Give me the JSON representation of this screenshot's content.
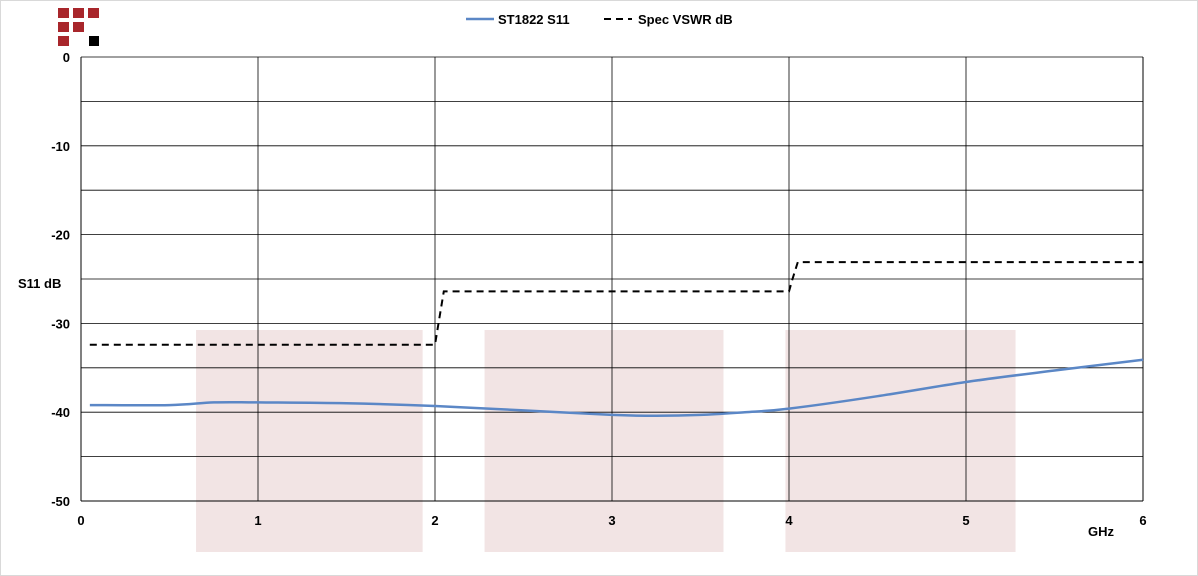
{
  "chart_data": {
    "type": "line",
    "title": "",
    "xlabel": "GHz",
    "ylabel": "S11 dB",
    "xlim": [
      0,
      6
    ],
    "ylim": [
      -50,
      0
    ],
    "x_ticks": [
      "0",
      "1",
      "2",
      "3",
      "4",
      "5",
      "6"
    ],
    "y_ticks": [
      "0",
      "-10",
      "-20",
      "-30",
      "-40",
      "-50"
    ],
    "y_minor_grid": [
      -5,
      -15,
      -25,
      -35,
      -45
    ],
    "grid": true,
    "legend_position": "top",
    "shaded_bands": [
      [
        0.65,
        1.93
      ],
      [
        2.28,
        3.63
      ],
      [
        3.98,
        5.28
      ]
    ],
    "series": [
      {
        "name": "ST1822 S11",
        "style": "solid",
        "color": "#5b87c6",
        "x": [
          0.05,
          0.5,
          0.75,
          1.0,
          1.5,
          2.0,
          2.5,
          3.0,
          3.25,
          3.5,
          3.75,
          4.0,
          4.5,
          5.0,
          5.5,
          6.0
        ],
        "y": [
          -39.2,
          -39.2,
          -38.9,
          -38.9,
          -39.0,
          -39.3,
          -39.8,
          -40.3,
          -40.4,
          -40.3,
          -40.0,
          -39.6,
          -38.2,
          -36.6,
          -35.3,
          -34.1
        ]
      },
      {
        "name": "Spec VSWR dB",
        "style": "dashed",
        "color": "#000000",
        "x": [
          0.05,
          2.0,
          2.02,
          2.05,
          4.0,
          4.02,
          4.05,
          6.0
        ],
        "y": [
          -32.4,
          -32.4,
          -30.0,
          -26.4,
          -26.4,
          -25.0,
          -23.1,
          -23.1
        ]
      }
    ]
  },
  "logo": {
    "name": "brand-logo",
    "colors": {
      "red": "#a8262b",
      "black": "#000000"
    }
  }
}
